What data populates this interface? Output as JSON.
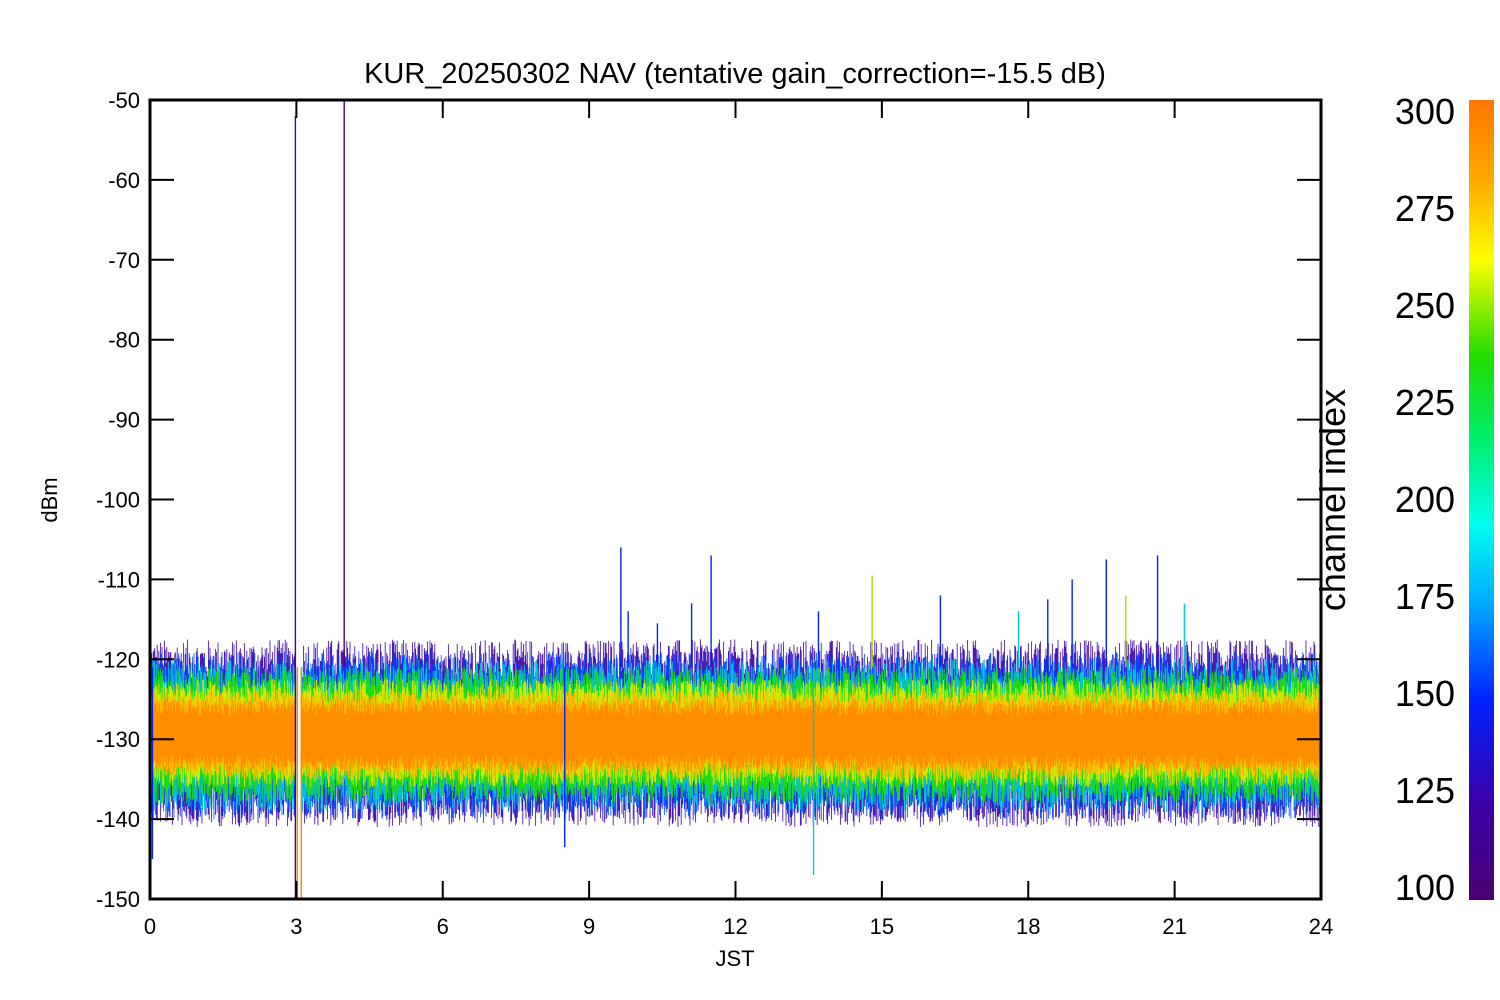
{
  "chart_data": {
    "type": "line",
    "title": "KUR_20250302 NAV (tentative gain_correction=-15.5 dB)",
    "xlabel": "JST",
    "ylabel": "dBm",
    "xlim": [
      0,
      24
    ],
    "ylim": [
      -150,
      -50
    ],
    "xticks": [
      "0",
      "3",
      "6",
      "9",
      "12",
      "15",
      "18",
      "21",
      "24"
    ],
    "yticks": [
      "-50",
      "-60",
      "-70",
      "-80",
      "-90",
      "-100",
      "-110",
      "-120",
      "-130",
      "-140",
      "-150"
    ],
    "grid": false,
    "colorbar": {
      "label": "channel index",
      "range": [
        100,
        300
      ],
      "ticks": [
        "300",
        "275",
        "250",
        "225",
        "200",
        "175",
        "150",
        "125",
        "100"
      ]
    },
    "bands": [
      {
        "channel_low": 100,
        "channel_high": 140,
        "y_low": -141,
        "y_high": -117.5,
        "color": "#3a00a8"
      },
      {
        "channel_low": 140,
        "channel_high": 175,
        "y_low": -140,
        "y_high": -119,
        "color": "#0040ff"
      },
      {
        "channel_low": 175,
        "channel_high": 200,
        "y_low": -139,
        "y_high": -120,
        "color": "#00ccdd"
      },
      {
        "channel_low": 200,
        "channel_high": 240,
        "y_low": -138,
        "y_high": -121,
        "color": "#22dd00"
      },
      {
        "channel_low": 240,
        "channel_high": 270,
        "y_low": -136,
        "y_high": -122.5,
        "color": "#e8e800"
      },
      {
        "channel_low": 270,
        "channel_high": 290,
        "y_low": -135,
        "y_high": -124,
        "color": "#ffb000"
      },
      {
        "channel_low": 290,
        "channel_high": 300,
        "y_low": -134,
        "y_high": -125,
        "color": "#ff8800"
      }
    ],
    "data_gap": {
      "x_start": 3.0,
      "x_end": 3.1
    },
    "spikes": [
      {
        "x": 2.98,
        "y_top": -52,
        "y_bottom": -150,
        "color": "#4b0082"
      },
      {
        "x": 3.98,
        "y_top": -50,
        "y_bottom": -121,
        "color": "#4b0082"
      },
      {
        "x": 3.02,
        "y_top": -121,
        "y_bottom": -150,
        "color": "#ff8800"
      },
      {
        "x": 3.1,
        "y_top": -121,
        "y_bottom": -150,
        "color": "#ff8800"
      },
      {
        "x": 9.65,
        "y_top": -106,
        "y_bottom": -121,
        "color": "#0022ff"
      },
      {
        "x": 9.8,
        "y_top": -114,
        "y_bottom": -121,
        "color": "#0022ff"
      },
      {
        "x": 10.4,
        "y_top": -115.5,
        "y_bottom": -121,
        "color": "#0022ff"
      },
      {
        "x": 11.1,
        "y_top": -113,
        "y_bottom": -121,
        "color": "#0022ff"
      },
      {
        "x": 11.5,
        "y_top": -107,
        "y_bottom": -121,
        "color": "#0022ff"
      },
      {
        "x": 13.7,
        "y_top": -114,
        "y_bottom": -121,
        "color": "#0022ff"
      },
      {
        "x": 14.8,
        "y_top": -109.5,
        "y_bottom": -121,
        "color": "#aadd00"
      },
      {
        "x": 16.2,
        "y_top": -112,
        "y_bottom": -121,
        "color": "#0022ff"
      },
      {
        "x": 17.8,
        "y_top": -114,
        "y_bottom": -121,
        "color": "#00cccc"
      },
      {
        "x": 18.4,
        "y_top": -112.5,
        "y_bottom": -121,
        "color": "#0022ff"
      },
      {
        "x": 18.9,
        "y_top": -110,
        "y_bottom": -121,
        "color": "#0022ff"
      },
      {
        "x": 19.6,
        "y_top": -107.5,
        "y_bottom": -121,
        "color": "#0022ff"
      },
      {
        "x": 20.0,
        "y_top": -112,
        "y_bottom": -121,
        "color": "#aadd00"
      },
      {
        "x": 20.65,
        "y_top": -107,
        "y_bottom": -121,
        "color": "#0022ff"
      },
      {
        "x": 21.2,
        "y_top": -113,
        "y_bottom": -121,
        "color": "#00cccc"
      },
      {
        "x": 13.6,
        "y_top": -121,
        "y_bottom": -147,
        "color": "#00cccc"
      },
      {
        "x": 8.5,
        "y_top": -121,
        "y_bottom": -143.5,
        "color": "#0022ff"
      },
      {
        "x": 0.05,
        "y_top": -121,
        "y_bottom": -145,
        "color": "#0022ff"
      }
    ]
  }
}
